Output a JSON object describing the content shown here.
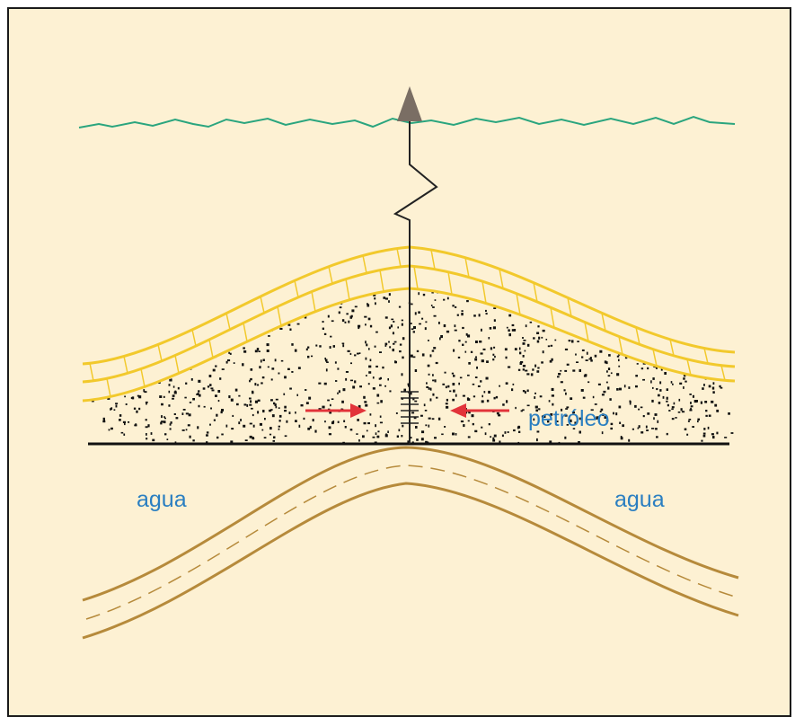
{
  "labels": {
    "oil": "petróleo",
    "water_left": "agua",
    "water_right": "agua"
  },
  "colors": {
    "background": "#fdf1d3",
    "frame": "#1a1a1a",
    "surface_line": "#2aa57e",
    "caprock": "#f2c92c",
    "shale": "#b68a3b",
    "well": "#222222",
    "arrow": "#e2333a",
    "label": "#2b7fc1",
    "sand_dots": "#111111",
    "well_head": "#7a6e64"
  }
}
